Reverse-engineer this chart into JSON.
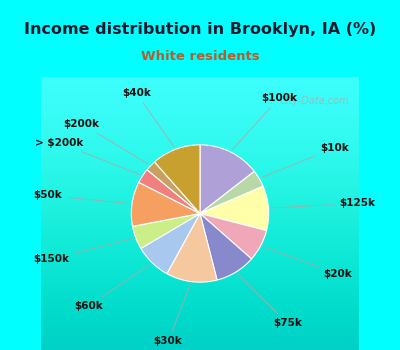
{
  "title": "Income distribution in Brooklyn, IA (%)",
  "subtitle": "White residents",
  "fig_bg": "#00FFFF",
  "chart_bg_top": "#e8f5ee",
  "chart_bg_bottom": "#d0eed8",
  "title_color": "#1a1a2e",
  "subtitle_color": "#b06030",
  "labels": [
    "$100k",
    "$10k",
    "$125k",
    "$20k",
    "$75k",
    "$30k",
    "$60k",
    "$150k",
    "$50k",
    "> $200k",
    "$200k",
    "$40k"
  ],
  "values": [
    14.5,
    4.0,
    10.5,
    7.5,
    9.5,
    12.0,
    8.5,
    5.5,
    10.5,
    3.5,
    2.5,
    11.5
  ],
  "colors": [
    "#b0a0d8",
    "#b8d8a8",
    "#ffffaa",
    "#f0a8b8",
    "#8888cc",
    "#f5c8a0",
    "#a8c8f0",
    "#ccee88",
    "#f5a060",
    "#f08080",
    "#c8a060",
    "#c8a030"
  ],
  "watermark": "City-Data.com",
  "label_fontsize": 7.5,
  "title_fontsize": 11.5,
  "subtitle_fontsize": 9.5
}
